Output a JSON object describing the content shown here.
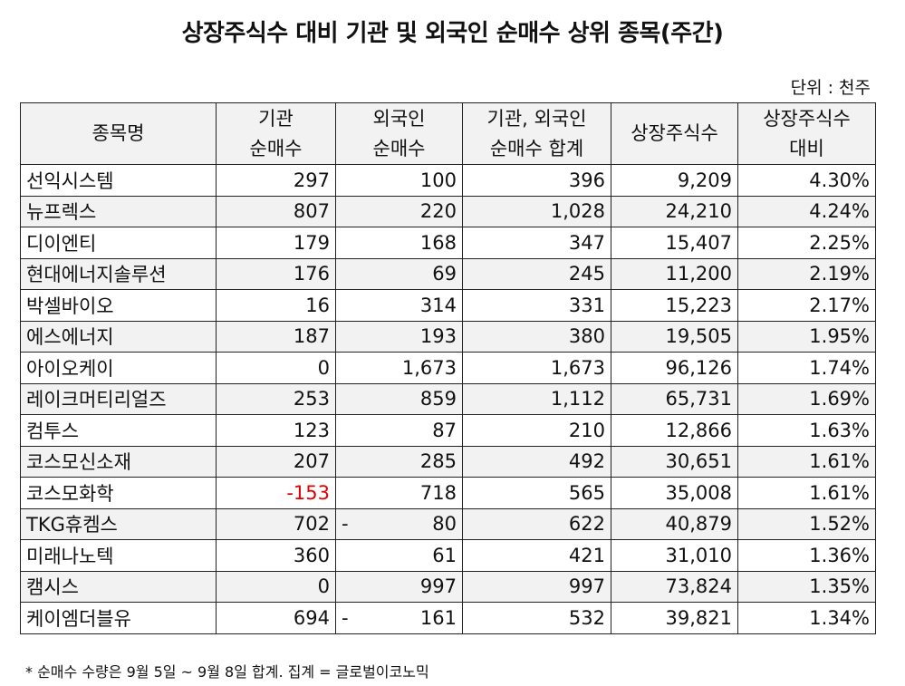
{
  "title": "상장주식수 대비 기관 및 외국인 순매수 상위 종목(주간)",
  "unit": "단위 : 천주",
  "headers": {
    "name": "종목명",
    "inst_1": "기관",
    "inst_2": "순매수",
    "foreign_1": "외국인",
    "foreign_2": "순매수",
    "sum_1": "기관, 외국인",
    "sum_2": "순매수 합계",
    "shares": "상장주식수",
    "ratio_1": "상장주식수",
    "ratio_2": "대비"
  },
  "rows": [
    {
      "name": "선익시스템",
      "inst": "297",
      "foreign": "100",
      "sum": "396",
      "shares": "9,209",
      "ratio": "4.30%"
    },
    {
      "name": "뉴프렉스",
      "inst": "807",
      "foreign": "220",
      "sum": "1,028",
      "shares": "24,210",
      "ratio": "4.24%"
    },
    {
      "name": "디이엔티",
      "inst": "179",
      "foreign": "168",
      "sum": "347",
      "shares": "15,407",
      "ratio": "2.25%"
    },
    {
      "name": "현대에너지솔루션",
      "inst": "176",
      "foreign": "69",
      "sum": "245",
      "shares": "11,200",
      "ratio": "2.19%"
    },
    {
      "name": "박셀바이오",
      "inst": "16",
      "foreign": "314",
      "sum": "331",
      "shares": "15,223",
      "ratio": "2.17%"
    },
    {
      "name": "에스에너지",
      "inst": "187",
      "foreign": "193",
      "sum": "380",
      "shares": "19,505",
      "ratio": "1.95%"
    },
    {
      "name": "아이오케이",
      "inst": "0",
      "foreign": "1,673",
      "sum": "1,673",
      "shares": "96,126",
      "ratio": "1.74%"
    },
    {
      "name": "레이크머티리얼즈",
      "inst": "253",
      "foreign": "859",
      "sum": "1,112",
      "shares": "65,731",
      "ratio": "1.69%"
    },
    {
      "name": "컴투스",
      "inst": "123",
      "foreign": "87",
      "sum": "210",
      "shares": "12,866",
      "ratio": "1.63%"
    },
    {
      "name": "코스모신소재",
      "inst": "207",
      "foreign": "285",
      "sum": "492",
      "shares": "30,651",
      "ratio": "1.61%"
    },
    {
      "name": "코스모화학",
      "inst": "-153",
      "foreign": "718",
      "sum": "565",
      "shares": "35,008",
      "ratio": "1.61%"
    },
    {
      "name": "TKG휴켐스",
      "inst": "702",
      "foreign_dash": "-",
      "foreign": "80",
      "sum": "622",
      "shares": "40,879",
      "ratio": "1.52%"
    },
    {
      "name": "미래나노텍",
      "inst": "360",
      "foreign": "61",
      "sum": "421",
      "shares": "31,010",
      "ratio": "1.36%"
    },
    {
      "name": "캠시스",
      "inst": "0",
      "foreign": "997",
      "sum": "997",
      "shares": "73,824",
      "ratio": "1.35%"
    },
    {
      "name": "케이엠더블유",
      "inst": "694",
      "foreign_dash": "-",
      "foreign": "161",
      "sum": "532",
      "shares": "39,821",
      "ratio": "1.34%"
    }
  ],
  "footnote": "* 순매수 수량은 9월 5일 ~ 9월 8일 합계.  집계 = 글로벌이코노믹",
  "colors": {
    "negative": "#e00000",
    "band": "#f2f2f2"
  }
}
